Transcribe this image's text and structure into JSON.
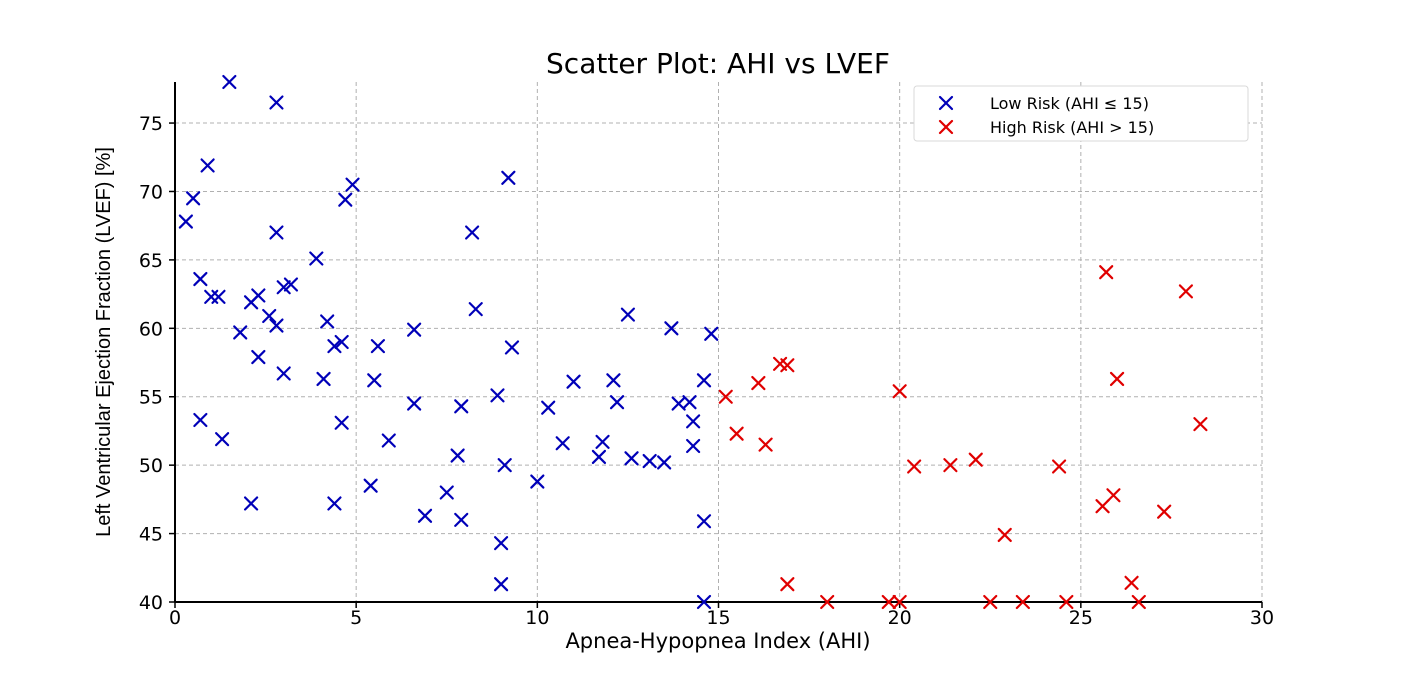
{
  "chart_data": {
    "type": "scatter",
    "title": "Scatter Plot: AHI vs LVEF",
    "xlabel": "Apnea-Hypopnea Index (AHI)",
    "ylabel": "Left Ventricular Ejection Fraction (LVEF) [%]",
    "xlim": [
      0,
      30
    ],
    "ylim": [
      40,
      78
    ],
    "xticks": [
      0,
      5,
      10,
      15,
      20,
      25,
      30
    ],
    "yticks": [
      40,
      45,
      50,
      55,
      60,
      65,
      70,
      75
    ],
    "grid": true,
    "legend_position": "top-right",
    "marker": "x",
    "series": [
      {
        "name": "Low Risk (AHI ≤ 15)",
        "color": "#0000b8",
        "points": [
          [
            0.3,
            67.8
          ],
          [
            0.5,
            69.5
          ],
          [
            0.7,
            63.6
          ],
          [
            0.7,
            53.3
          ],
          [
            0.9,
            71.9
          ],
          [
            1.0,
            62.3
          ],
          [
            1.2,
            62.3
          ],
          [
            1.3,
            51.9
          ],
          [
            1.5,
            78.0
          ],
          [
            1.8,
            59.7
          ],
          [
            2.1,
            61.9
          ],
          [
            2.1,
            47.2
          ],
          [
            2.3,
            62.4
          ],
          [
            2.3,
            57.9
          ],
          [
            2.6,
            60.9
          ],
          [
            2.8,
            60.2
          ],
          [
            2.8,
            67.0
          ],
          [
            2.8,
            76.5
          ],
          [
            3.0,
            63.0
          ],
          [
            3.0,
            56.7
          ],
          [
            3.2,
            63.2
          ],
          [
            3.9,
            65.1
          ],
          [
            4.1,
            56.3
          ],
          [
            4.2,
            60.5
          ],
          [
            4.4,
            58.7
          ],
          [
            4.4,
            47.2
          ],
          [
            4.6,
            59.0
          ],
          [
            4.6,
            53.1
          ],
          [
            4.7,
            69.4
          ],
          [
            4.9,
            70.5
          ],
          [
            5.4,
            48.5
          ],
          [
            5.5,
            56.2
          ],
          [
            5.6,
            58.7
          ],
          [
            5.9,
            51.8
          ],
          [
            6.6,
            54.5
          ],
          [
            6.6,
            59.9
          ],
          [
            6.9,
            46.3
          ],
          [
            7.5,
            48.0
          ],
          [
            7.8,
            50.7
          ],
          [
            7.9,
            54.3
          ],
          [
            7.9,
            46.0
          ],
          [
            8.2,
            67.0
          ],
          [
            8.3,
            61.4
          ],
          [
            8.9,
            55.1
          ],
          [
            9.0,
            44.3
          ],
          [
            9.0,
            41.3
          ],
          [
            9.1,
            50.0
          ],
          [
            9.2,
            71.0
          ],
          [
            9.3,
            58.6
          ],
          [
            10.0,
            48.8
          ],
          [
            10.3,
            54.2
          ],
          [
            10.7,
            51.6
          ],
          [
            11.0,
            56.1
          ],
          [
            11.7,
            50.6
          ],
          [
            11.8,
            51.7
          ],
          [
            12.1,
            56.2
          ],
          [
            12.2,
            54.6
          ],
          [
            12.5,
            61.0
          ],
          [
            12.6,
            50.5
          ],
          [
            13.1,
            50.3
          ],
          [
            13.5,
            50.2
          ],
          [
            13.7,
            60.0
          ],
          [
            13.9,
            54.5
          ],
          [
            14.2,
            54.6
          ],
          [
            14.3,
            53.2
          ],
          [
            14.3,
            51.4
          ],
          [
            14.6,
            56.2
          ],
          [
            14.6,
            45.9
          ],
          [
            14.8,
            59.6
          ],
          [
            14.6,
            40.0
          ]
        ]
      },
      {
        "name": "High Risk (AHI > 15)",
        "color": "#e00000",
        "points": [
          [
            15.2,
            55.0
          ],
          [
            15.5,
            52.3
          ],
          [
            16.1,
            56.0
          ],
          [
            16.3,
            51.5
          ],
          [
            16.7,
            57.4
          ],
          [
            16.9,
            57.3
          ],
          [
            16.9,
            41.3
          ],
          [
            18.0,
            40.0
          ],
          [
            19.7,
            40.0
          ],
          [
            20.0,
            55.4
          ],
          [
            20.0,
            40.0
          ],
          [
            20.4,
            49.9
          ],
          [
            21.4,
            50.0
          ],
          [
            22.1,
            50.4
          ],
          [
            22.5,
            40.0
          ],
          [
            22.9,
            44.9
          ],
          [
            23.4,
            40.0
          ],
          [
            24.4,
            49.9
          ],
          [
            24.6,
            40.0
          ],
          [
            25.6,
            47.0
          ],
          [
            25.7,
            64.1
          ],
          [
            25.9,
            47.8
          ],
          [
            26.0,
            56.3
          ],
          [
            26.4,
            41.4
          ],
          [
            26.6,
            40.0
          ],
          [
            27.3,
            46.6
          ],
          [
            27.9,
            62.7
          ],
          [
            28.3,
            53.0
          ]
        ]
      }
    ]
  }
}
